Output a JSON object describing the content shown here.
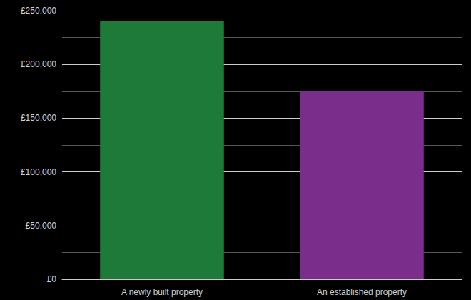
{
  "chart_data": {
    "type": "bar",
    "categories": [
      "A newly built property",
      "An established property"
    ],
    "values": [
      240000,
      175000
    ],
    "colors": [
      "#1e7a38",
      "#7b2d8b"
    ],
    "ylim": [
      0,
      250000
    ],
    "yticks": [
      {
        "value": 0,
        "label": "£0"
      },
      {
        "value": 50000,
        "label": "£50,000"
      },
      {
        "value": 100000,
        "label": "£100,000"
      },
      {
        "value": 150000,
        "label": "£150,000"
      },
      {
        "value": 200000,
        "label": "£200,000"
      },
      {
        "value": 250000,
        "label": "£250,000"
      }
    ],
    "grid": true
  }
}
